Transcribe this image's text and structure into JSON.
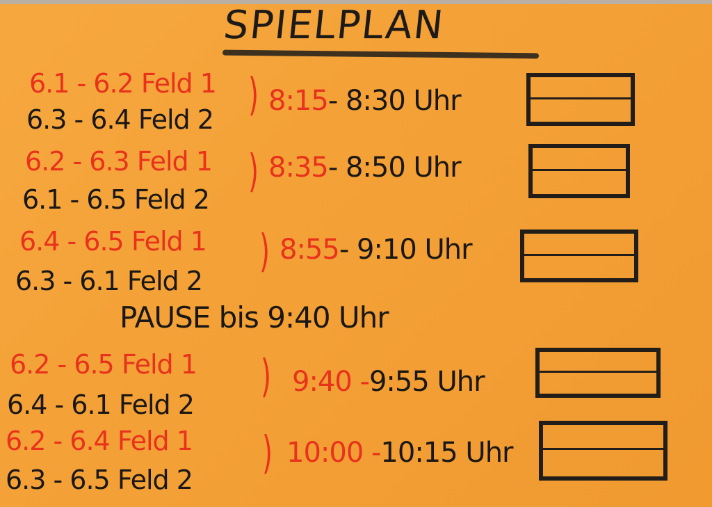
{
  "title": "SPIELPLAN",
  "colors": {
    "paper": "#f3a33a",
    "red_marker": "#e8321c",
    "black_marker": "#1a1714"
  },
  "rounds": [
    {
      "match1": "6.1 - 6.2 Feld 1",
      "match2": "6.3 - 6.4 Feld 2",
      "start": "8:15",
      "end": "- 8:30 Uhr"
    },
    {
      "match1": "6.2 - 6.3 Feld 1",
      "match2": "6.1 - 6.5 Feld 2",
      "start": "8:35",
      "end": "- 8:50 Uhr"
    },
    {
      "match1": "6.4 - 6.5 Feld 1",
      "match2": "6.3 - 6.1 Feld 2",
      "start": "8:55",
      "end": "- 9:10 Uhr"
    },
    {
      "match1": "6.2 - 6.5 Feld 1",
      "match2": "6.4 - 6.1 Feld 2",
      "start": "9:40 -",
      "end": "9:55 Uhr"
    },
    {
      "match1": "6.2 - 6.4 Feld 1",
      "match2": "6.3 - 6.5 Feld 2",
      "start": "10:00 -",
      "end": "10:15 Uhr"
    }
  ],
  "pause": "PAUSE bis 9:40 Uhr"
}
